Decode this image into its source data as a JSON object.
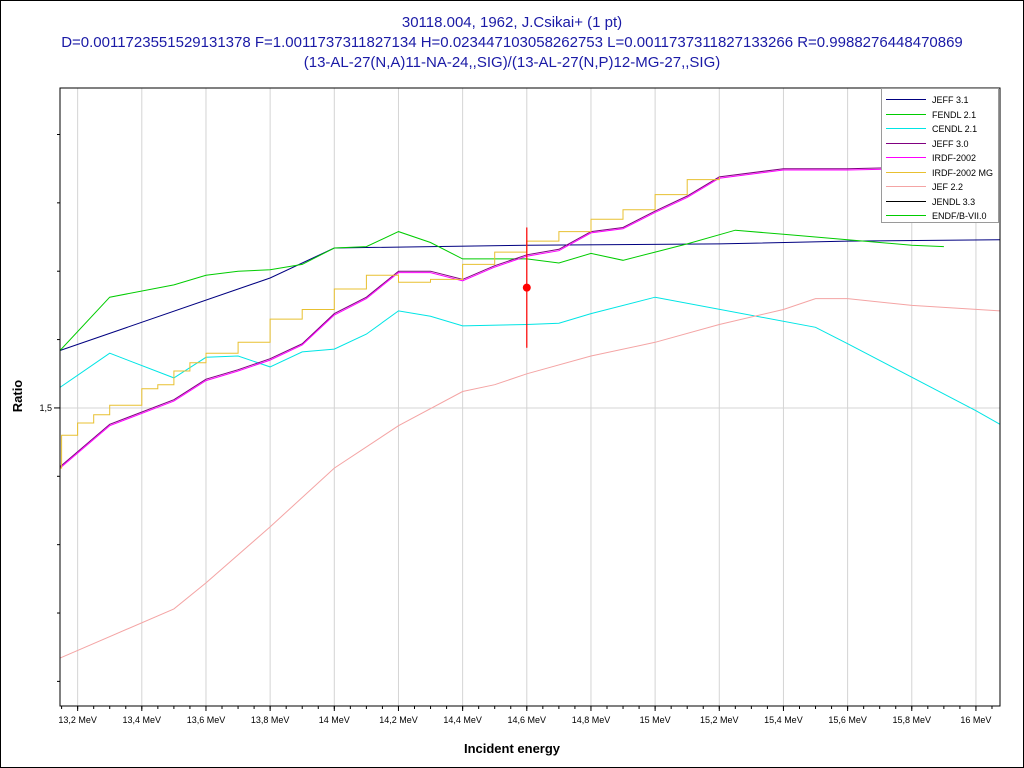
{
  "title_lines": [
    "30118.004, 1962, J.Csikai+ (1 pt)",
    "D=0.0011723551529131378 F=1.0011737311827134 H=0.023447103058262753 L=0.0011737311827133266 R=0.9988276448470869",
    "(13-AL-27(N,A)11-NA-24,,SIG)/(13-AL-27(N,P)12-MG-27,,SIG)"
  ],
  "chart_data": {
    "type": "line",
    "title": "30118.004, 1962, J.Csikai+ (1 pt)",
    "xlabel": "Incident energy",
    "ylabel": "Ratio",
    "xlim": [
      13.145,
      16.075
    ],
    "ylim": [
      1.282,
      1.734
    ],
    "x_ticks": [
      13.2,
      13.4,
      13.6,
      13.8,
      14.0,
      14.2,
      14.4,
      14.6,
      14.8,
      15.0,
      15.2,
      15.4,
      15.6,
      15.8,
      16.0
    ],
    "x_tick_labels": [
      "13,2 MeV",
      "13,4 MeV",
      "13,6 MeV",
      "13,8 MeV",
      "14 MeV",
      "14,2 MeV",
      "14,4 MeV",
      "14,6 MeV",
      "14,8 MeV",
      "15 MeV",
      "15,2 MeV",
      "15,4 MeV",
      "15,6 MeV",
      "15,8 MeV",
      "16 MeV"
    ],
    "y_ticks": [
      1.5
    ],
    "y_tick_labels": [
      "1,5"
    ],
    "grid": true,
    "legend_position": "top-right",
    "series": [
      {
        "name": "JEFF 3.1",
        "color": "#000080",
        "x": [
          13.145,
          13.8,
          14.0,
          14.6,
          15.2,
          15.6,
          16.075
        ],
        "y": [
          1.542,
          1.595,
          1.617,
          1.619,
          1.62,
          1.622,
          1.623
        ]
      },
      {
        "name": "FENDL 2.1",
        "color": "#00cc00",
        "x": [
          13.145,
          13.3,
          13.5,
          13.6,
          13.7,
          13.8,
          13.9,
          14.0,
          14.1,
          14.2,
          14.3,
          14.4,
          14.6,
          14.7,
          14.8,
          14.9,
          15.0,
          15.1,
          15.25,
          15.4,
          15.6,
          15.8,
          15.9
        ],
        "y": [
          1.542,
          1.581,
          1.59,
          1.597,
          1.6,
          1.601,
          1.605,
          1.617,
          1.618,
          1.629,
          1.621,
          1.609,
          1.609,
          1.606,
          1.613,
          1.608,
          1.614,
          1.62,
          1.63,
          1.627,
          1.623,
          1.619,
          1.618
        ]
      },
      {
        "name": "CENDL 2.1",
        "color": "#00e5e5",
        "x": [
          13.145,
          13.3,
          13.5,
          13.6,
          13.7,
          13.8,
          13.9,
          14.0,
          14.1,
          14.2,
          14.3,
          14.4,
          14.6,
          14.7,
          14.8,
          15.0,
          15.5,
          15.6,
          16.0,
          16.075
        ],
        "y": [
          1.515,
          1.54,
          1.522,
          1.537,
          1.538,
          1.53,
          1.541,
          1.543,
          1.554,
          1.571,
          1.567,
          1.56,
          1.561,
          1.562,
          1.569,
          1.581,
          1.559,
          1.547,
          1.498,
          1.488
        ]
      },
      {
        "name": "JEFF 3.0",
        "color": "#800080",
        "x": [
          13.145,
          13.3,
          13.5,
          13.6,
          13.7,
          13.8,
          13.9,
          14.0,
          14.1,
          14.2,
          14.3,
          14.4,
          14.5,
          14.6,
          14.7,
          14.8,
          14.9,
          15.0,
          15.1,
          15.2,
          15.4,
          15.6,
          15.8
        ],
        "y": [
          1.457,
          1.488,
          1.506,
          1.521,
          1.528,
          1.536,
          1.547,
          1.569,
          1.581,
          1.6,
          1.6,
          1.594,
          1.604,
          1.612,
          1.616,
          1.629,
          1.632,
          1.644,
          1.655,
          1.669,
          1.675,
          1.675,
          1.676
        ]
      },
      {
        "name": "IRDF-2002",
        "color": "#ff00ff",
        "x": [
          13.145,
          13.3,
          13.5,
          13.6,
          13.7,
          13.8,
          13.9,
          14.0,
          14.1,
          14.2,
          14.3,
          14.4,
          14.5,
          14.6,
          14.7,
          14.8,
          14.9,
          15.0,
          15.1,
          15.2,
          15.4,
          15.6,
          15.8
        ],
        "y": [
          1.456,
          1.487,
          1.505,
          1.52,
          1.527,
          1.535,
          1.546,
          1.568,
          1.58,
          1.599,
          1.599,
          1.593,
          1.603,
          1.611,
          1.615,
          1.628,
          1.631,
          1.643,
          1.654,
          1.668,
          1.674,
          1.674,
          1.675
        ]
      },
      {
        "name": "IRDF-2002 MG",
        "color": "#e8c030",
        "x": [
          13.145,
          13.15,
          13.15,
          13.2,
          13.2,
          13.25,
          13.25,
          13.3,
          13.3,
          13.4,
          13.4,
          13.45,
          13.45,
          13.5,
          13.5,
          13.55,
          13.55,
          13.6,
          13.6,
          13.7,
          13.7,
          13.8,
          13.8,
          13.9,
          13.9,
          14.0,
          14.0,
          14.1,
          14.1,
          14.2,
          14.2,
          14.3,
          14.3,
          14.4,
          14.4,
          14.5,
          14.5,
          14.6,
          14.6,
          14.7,
          14.7,
          14.8,
          14.8,
          14.9,
          14.9,
          15.0,
          15.0,
          15.1,
          15.1,
          15.2,
          15.2
        ],
        "y": [
          1.456,
          1.456,
          1.48,
          1.48,
          1.489,
          1.489,
          1.495,
          1.495,
          1.502,
          1.502,
          1.514,
          1.514,
          1.517,
          1.517,
          1.527,
          1.527,
          1.533,
          1.533,
          1.54,
          1.54,
          1.548,
          1.548,
          1.565,
          1.565,
          1.572,
          1.572,
          1.587,
          1.587,
          1.597,
          1.597,
          1.592,
          1.592,
          1.594,
          1.594,
          1.605,
          1.605,
          1.614,
          1.614,
          1.622,
          1.622,
          1.629,
          1.629,
          1.638,
          1.638,
          1.645,
          1.645,
          1.656,
          1.656,
          1.667,
          1.667,
          1.669
        ]
      },
      {
        "name": "JEF 2.2",
        "color": "#f4a4a4",
        "x": [
          13.145,
          13.5,
          13.6,
          13.8,
          14.0,
          14.2,
          14.4,
          14.5,
          14.6,
          14.8,
          15.0,
          15.2,
          15.4,
          15.5,
          15.6,
          15.8,
          16.075
        ],
        "y": [
          1.317,
          1.353,
          1.372,
          1.413,
          1.456,
          1.487,
          1.512,
          1.517,
          1.525,
          1.538,
          1.548,
          1.561,
          1.572,
          1.58,
          1.58,
          1.575,
          1.571
        ]
      },
      {
        "name": "JENDL 3.3",
        "color": "#000000",
        "x": [],
        "y": []
      },
      {
        "name": "ENDF/B-VII.0",
        "color": "#00cc00",
        "x": [],
        "y": []
      }
    ],
    "data_points": [
      {
        "x": 14.6,
        "y": 1.588,
        "y_err": 0.044,
        "color": "#ff0000"
      }
    ]
  }
}
